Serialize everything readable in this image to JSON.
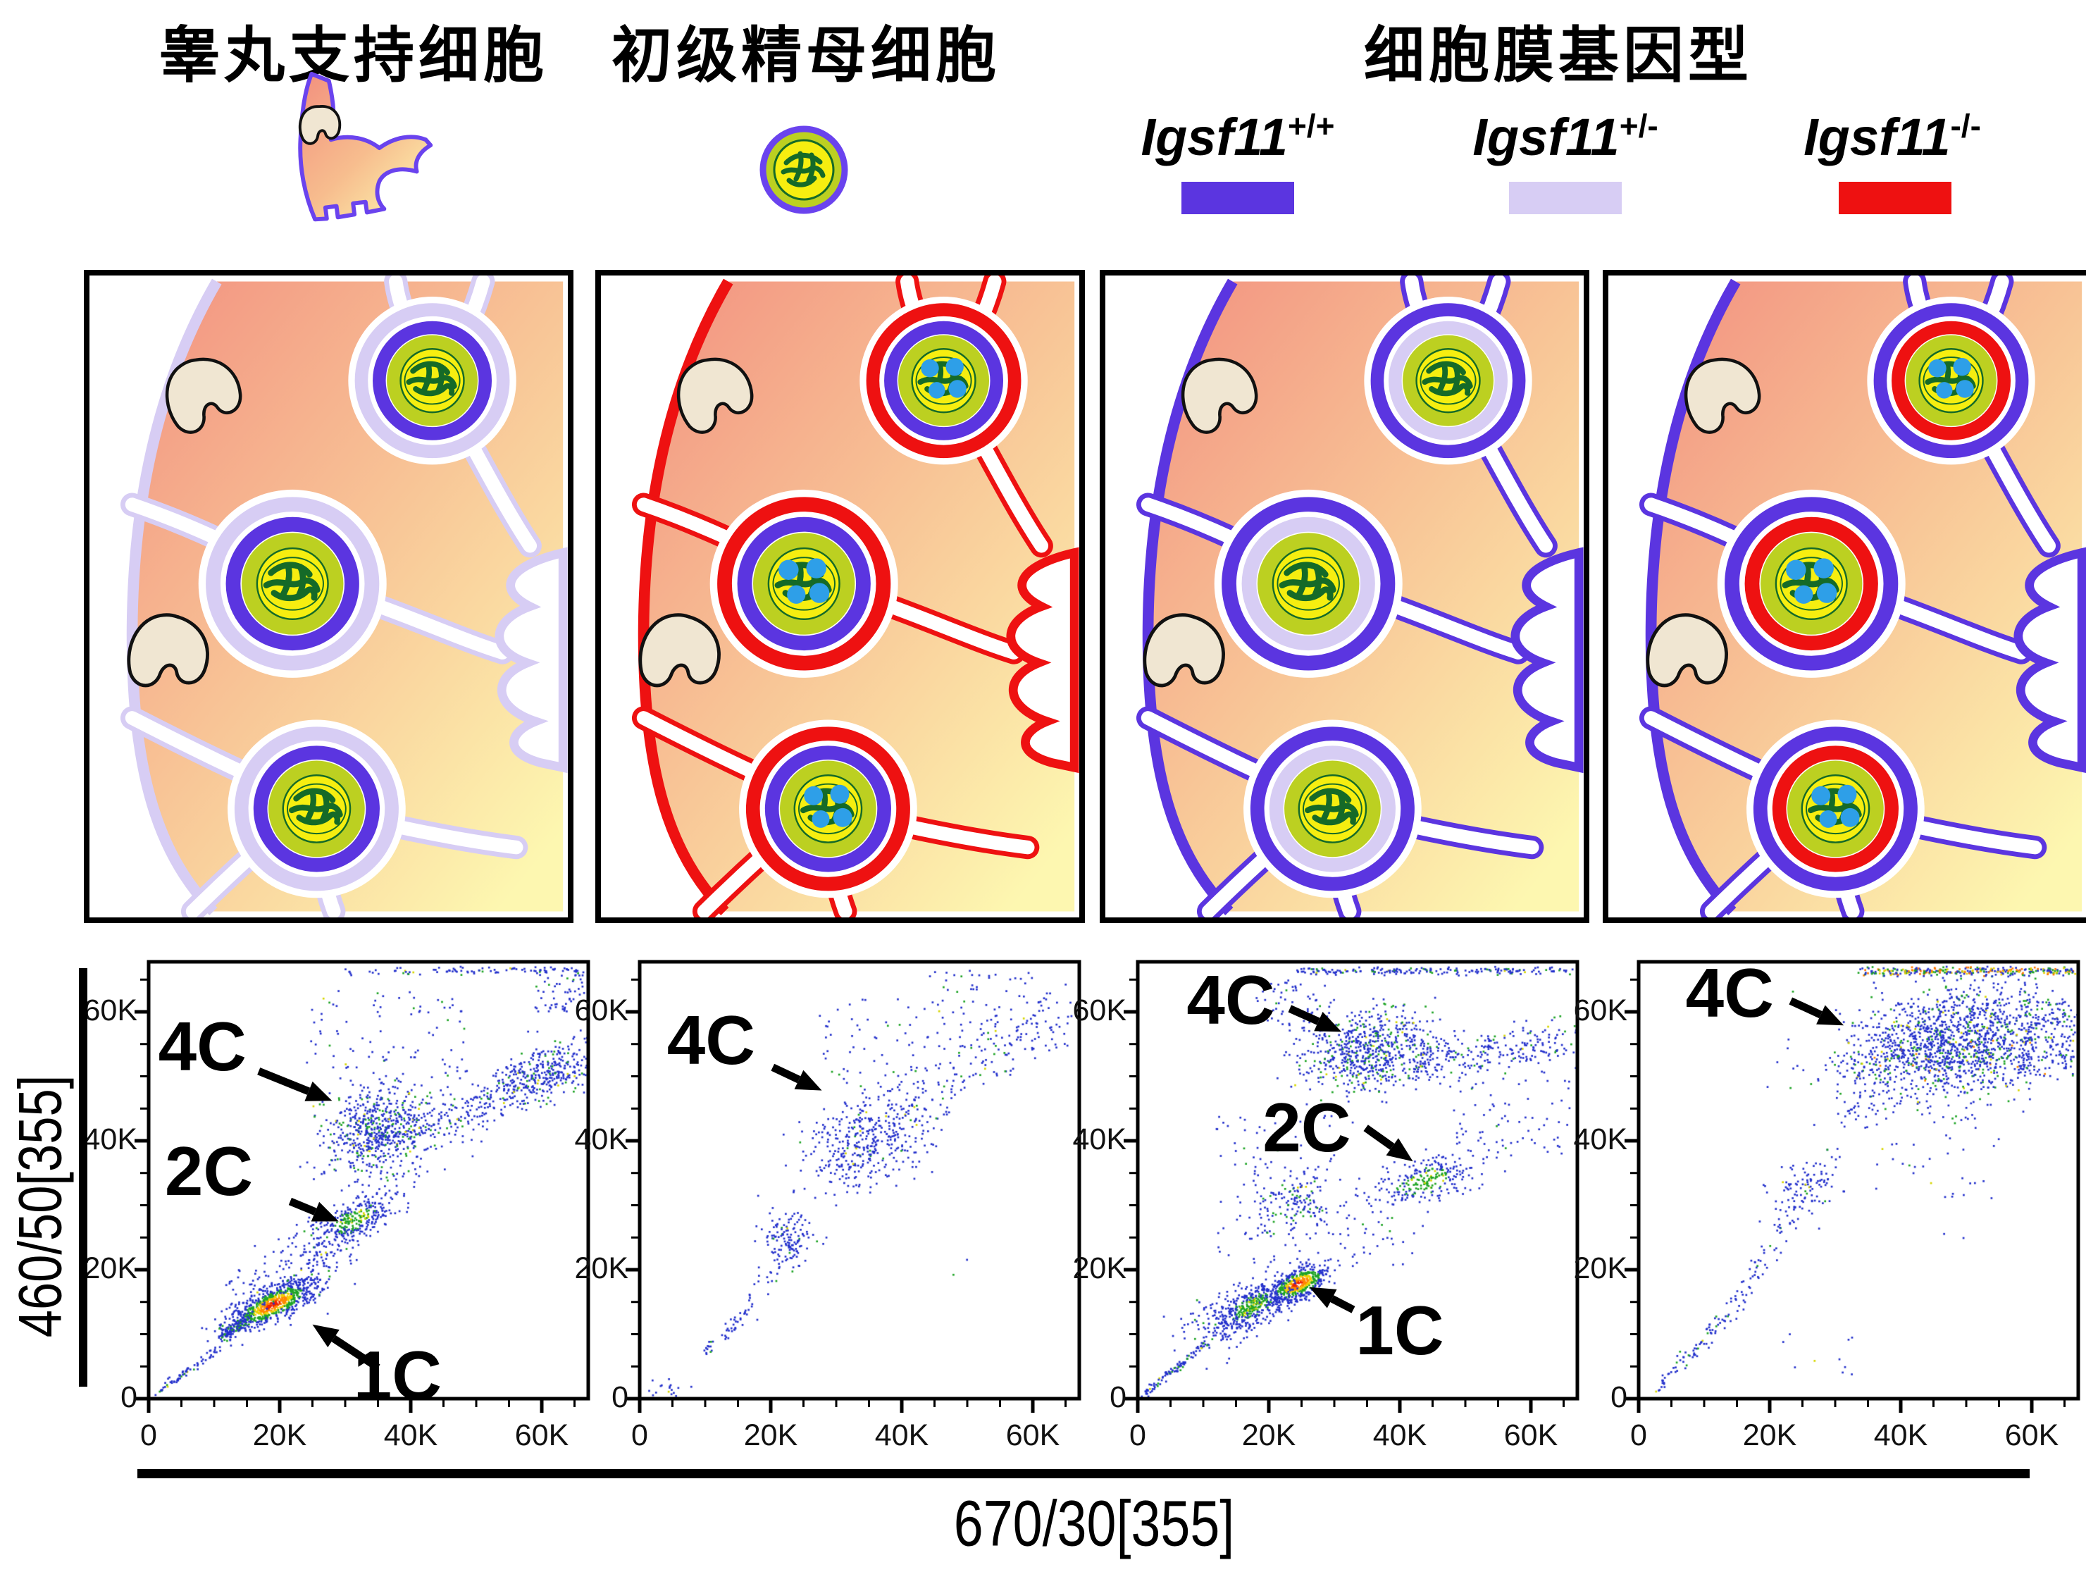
{
  "legend": {
    "sertoli_label": "睾丸支持细胞",
    "spermatocyte_label": "初级精母细胞",
    "genotype_title": "细胞膜基因型",
    "genotypes": [
      {
        "base": "Igsf11",
        "sup": "+/+",
        "color": "#5b35e0"
      },
      {
        "base": "Igsf11",
        "sup": "+/-",
        "color": "#d7cdf4"
      },
      {
        "base": "Igsf11",
        "sup": "-/-",
        "color": "#ee1111"
      }
    ]
  },
  "colors": {
    "purple": "#5b35e0",
    "lavender": "#d7cdf4",
    "red": "#ee1111",
    "cell_gradient_start": "#f29180",
    "cell_gradient_end": "#fdf7b0",
    "cytoplasm_ring": "#bcd021",
    "nucleus_yellow": "#f6ee10",
    "chromatin_green": "#156a28",
    "brdu_dot_blue": "#2e9fe8",
    "sertoli_nucleus_beige": "#f0e6d2"
  },
  "panels": [
    {
      "sertoli_membrane": "#d7cdf4",
      "spermatocyte_membrane": "#5b35e0",
      "brdu_dots": false
    },
    {
      "sertoli_membrane": "#ee1111",
      "spermatocyte_membrane": "#5b35e0",
      "brdu_dots": true
    },
    {
      "sertoli_membrane": "#5b35e0",
      "spermatocyte_membrane": "#d7cdf4",
      "brdu_dots": false
    },
    {
      "sertoli_membrane": "#5b35e0",
      "spermatocyte_membrane": "#ee1111",
      "brdu_dots": true
    }
  ],
  "axes": {
    "y_label": "460/50[355]",
    "x_label": "670/30[355]",
    "tick_labels": [
      "0",
      "20K",
      "40K",
      "60K"
    ],
    "tick_values_k": [
      0,
      20,
      40,
      60
    ],
    "minor_ticks_k": [
      5,
      10,
      15,
      25,
      30,
      35,
      45,
      50,
      55,
      65
    ],
    "xlim_k": [
      0,
      67
    ],
    "ylim_k": [
      0,
      67
    ]
  },
  "chart_data": [
    {
      "type": "scatter",
      "xlabel": "670/30[355]",
      "ylabel": "460/50[355]",
      "xlim": [
        0,
        67000
      ],
      "ylim": [
        0,
        67000
      ],
      "annotations": [
        {
          "text": "4C",
          "tx": 8.2,
          "ty": 54.6,
          "arrow": {
            "x1": 16.8,
            "y1": 50.8,
            "x2": 28.0,
            "y2": 46.2
          }
        },
        {
          "text": "2C",
          "tx": 9.2,
          "ty": 35.3,
          "arrow": {
            "x1": 21.6,
            "y1": 30.6,
            "x2": 29.0,
            "y2": 27.5
          }
        },
        {
          "text": "1C",
          "tx": 38.0,
          "ty": 3.6,
          "arrow": {
            "x1": 35.0,
            "y1": 4.8,
            "x2": 25.0,
            "y2": 11.5
          }
        }
      ],
      "clusters": [
        {
          "kind": "line",
          "x1": 1,
          "y1": 0.6,
          "x2": 11,
          "y2": 8,
          "jitter": 0.7,
          "n": 70,
          "palette": "cold"
        },
        {
          "kind": "gauss",
          "cx": 19,
          "cy": 14.6,
          "sx": 3.6,
          "sy": 1.2,
          "rot": 27,
          "n": 750,
          "palette": "hot"
        },
        {
          "kind": "line",
          "x1": 11,
          "y1": 9.5,
          "x2": 15,
          "y2": 12.5,
          "jitter": 1.0,
          "n": 130,
          "palette": "greenish"
        },
        {
          "kind": "gauss",
          "cx": 23,
          "cy": 20,
          "sx": 4,
          "sy": 3,
          "rot": 30,
          "n": 80,
          "palette": "cold"
        },
        {
          "kind": "gauss",
          "cx": 31.5,
          "cy": 27.8,
          "sx": 3.4,
          "sy": 1.5,
          "rot": 28,
          "n": 280,
          "palette": "greencore"
        },
        {
          "kind": "gauss",
          "cx": 27,
          "cy": 23.5,
          "sx": 2.5,
          "sy": 2,
          "rot": 30,
          "n": 90,
          "palette": "cold"
        },
        {
          "kind": "gauss",
          "cx": 35.5,
          "cy": 41.5,
          "sx": 4.6,
          "sy": 3.4,
          "rot": 20,
          "n": 700,
          "palette": "coldgreen"
        },
        {
          "kind": "band",
          "x1": 44,
          "y1": 42,
          "x2": 66,
          "y2": 53,
          "w": 3.2,
          "n": 260,
          "palette": "cold"
        },
        {
          "kind": "gauss",
          "cx": 60,
          "cy": 50,
          "sx": 4,
          "sy": 2.4,
          "rot": 25,
          "n": 220,
          "palette": "coldgreen"
        },
        {
          "kind": "uniform",
          "x1": 24,
          "y1": 47,
          "x2": 50,
          "y2": 64,
          "n": 90,
          "palette": "cold"
        },
        {
          "kind": "band",
          "x1": 30,
          "y1": 66.3,
          "x2": 66,
          "y2": 66.5,
          "w": 0.6,
          "n": 90,
          "palette": "coldgreen"
        },
        {
          "kind": "uniform",
          "x1": 59,
          "y1": 60,
          "x2": 66.5,
          "y2": 66.5,
          "n": 60,
          "palette": "cold"
        },
        {
          "kind": "uniform",
          "x1": 12,
          "y1": 13,
          "x2": 22,
          "y2": 20,
          "n": 60,
          "palette": "cold"
        }
      ]
    },
    {
      "type": "scatter",
      "xlabel": "670/30[355]",
      "ylabel": "460/50[355]",
      "xlim": [
        0,
        67000
      ],
      "ylim": [
        0,
        67000
      ],
      "annotations": [
        {
          "text": "4C",
          "tx": 10.9,
          "ty": 55.6,
          "arrow": {
            "x1": 20.3,
            "y1": 51.4,
            "x2": 27.8,
            "y2": 47.8
          }
        }
      ],
      "clusters": [
        {
          "kind": "gauss",
          "cx": 4,
          "cy": 1.5,
          "sx": 1.6,
          "sy": 0.9,
          "rot": 20,
          "n": 18,
          "palette": "cold"
        },
        {
          "kind": "line",
          "x1": 10,
          "y1": 7,
          "x2": 17,
          "y2": 14,
          "jitter": 1.1,
          "n": 45,
          "palette": "cold"
        },
        {
          "kind": "gauss",
          "cx": 22.5,
          "cy": 24.5,
          "sx": 2.3,
          "sy": 2.1,
          "rot": 25,
          "n": 110,
          "palette": "cold"
        },
        {
          "kind": "line",
          "x1": 17,
          "y1": 15,
          "x2": 26,
          "y2": 28,
          "jitter": 1.6,
          "n": 45,
          "palette": "cold"
        },
        {
          "kind": "gauss",
          "cx": 35,
          "cy": 40,
          "sx": 5,
          "sy": 3.6,
          "rot": 22,
          "n": 420,
          "palette": "cold2"
        },
        {
          "kind": "band",
          "x1": 40,
          "y1": 45,
          "x2": 64,
          "y2": 60,
          "w": 4,
          "n": 150,
          "palette": "cold"
        },
        {
          "kind": "uniform",
          "x1": 44,
          "y1": 54,
          "x2": 66,
          "y2": 66.5,
          "n": 90,
          "palette": "cold"
        },
        {
          "kind": "uniform",
          "x1": 27,
          "y1": 48,
          "x2": 44,
          "y2": 62,
          "n": 50,
          "palette": "cold"
        },
        {
          "kind": "uniform",
          "x1": 45,
          "y1": 18,
          "x2": 52,
          "y2": 22,
          "n": 2,
          "palette": "cold"
        }
      ]
    },
    {
      "type": "scatter",
      "xlabel": "670/30[355]",
      "ylabel": "460/50[355]",
      "xlim": [
        0,
        67000
      ],
      "ylim": [
        0,
        67000
      ],
      "annotations": [
        {
          "text": "4C",
          "tx": 14.2,
          "ty": 61.9,
          "arrow": {
            "x1": 23.2,
            "y1": 60.5,
            "x2": 31.1,
            "y2": 56.9
          }
        },
        {
          "text": "2C",
          "tx": 25.8,
          "ty": 42.1,
          "arrow": {
            "x1": 34.8,
            "y1": 42.0,
            "x2": 42.0,
            "y2": 36.8
          }
        },
        {
          "text": "1C",
          "tx": 40.0,
          "ty": 10.6,
          "arrow": {
            "x1": 32.9,
            "y1": 13.8,
            "x2": 26.2,
            "y2": 17.3
          }
        }
      ],
      "clusters": [
        {
          "kind": "line",
          "x1": 1,
          "y1": 0.7,
          "x2": 11,
          "y2": 9,
          "jitter": 0.6,
          "n": 100,
          "palette": "coldgreen"
        },
        {
          "kind": "gauss",
          "cx": 24.5,
          "cy": 17.8,
          "sx": 2.6,
          "sy": 1.1,
          "rot": 26,
          "n": 520,
          "palette": "hot"
        },
        {
          "kind": "gauss",
          "cx": 17.5,
          "cy": 14.3,
          "sx": 3.2,
          "sy": 1.4,
          "rot": 26,
          "n": 420,
          "palette": "greencore"
        },
        {
          "kind": "gauss",
          "cx": 12,
          "cy": 11,
          "sx": 3,
          "sy": 2.4,
          "rot": 30,
          "n": 90,
          "palette": "cold"
        },
        {
          "kind": "gauss",
          "cx": 23.5,
          "cy": 30,
          "sx": 3,
          "sy": 2.3,
          "rot": 20,
          "n": 140,
          "palette": "coldgreen"
        },
        {
          "kind": "gauss",
          "cx": 44,
          "cy": 33.8,
          "sx": 4.2,
          "sy": 1.8,
          "rot": 14,
          "n": 260,
          "palette": "greencore"
        },
        {
          "kind": "uniform",
          "x1": 12,
          "y1": 20,
          "x2": 30,
          "y2": 44,
          "n": 110,
          "palette": "cold"
        },
        {
          "kind": "gauss",
          "cx": 35,
          "cy": 54,
          "sx": 5,
          "sy": 3,
          "rot": 8,
          "n": 650,
          "palette": "coldgreen"
        },
        {
          "kind": "band",
          "x1": 42,
          "y1": 52,
          "x2": 66,
          "y2": 56,
          "w": 3.5,
          "n": 260,
          "palette": "cold"
        },
        {
          "kind": "band",
          "x1": 24,
          "y1": 66.3,
          "x2": 66,
          "y2": 66.4,
          "w": 0.6,
          "n": 200,
          "palette": "coldgreen"
        },
        {
          "kind": "uniform",
          "x1": 18,
          "y1": 57,
          "x2": 30,
          "y2": 65,
          "n": 60,
          "palette": "cold"
        },
        {
          "kind": "uniform",
          "x1": 48,
          "y1": 38,
          "x2": 66,
          "y2": 50,
          "n": 70,
          "palette": "cold"
        },
        {
          "kind": "uniform",
          "x1": 30,
          "y1": 20,
          "x2": 44,
          "y2": 30,
          "n": 40,
          "palette": "cold"
        }
      ]
    },
    {
      "type": "scatter",
      "xlabel": "670/30[355]",
      "ylabel": "460/50[355]",
      "xlim": [
        0,
        67000
      ],
      "ylim": [
        0,
        67000
      ],
      "annotations": [
        {
          "text": "4C",
          "tx": 13.9,
          "ty": 63.0,
          "arrow": {
            "x1": 23.2,
            "y1": 61.7,
            "x2": 31.3,
            "y2": 57.9
          }
        }
      ],
      "clusters": [
        {
          "kind": "line",
          "x1": 3,
          "y1": 2,
          "x2": 13,
          "y2": 12,
          "jitter": 1.2,
          "n": 70,
          "palette": "coldgreen"
        },
        {
          "kind": "line",
          "x1": 13,
          "y1": 12,
          "x2": 22,
          "y2": 26,
          "jitter": 1.6,
          "n": 55,
          "palette": "cold"
        },
        {
          "kind": "line",
          "x1": 22,
          "y1": 26,
          "x2": 30,
          "y2": 40,
          "jitter": 2.0,
          "n": 45,
          "palette": "cold"
        },
        {
          "kind": "gauss",
          "cx": 25,
          "cy": 33,
          "sx": 2.6,
          "sy": 2.2,
          "rot": 30,
          "n": 80,
          "palette": "cold"
        },
        {
          "kind": "gauss",
          "cx": 48,
          "cy": 55,
          "sx": 8,
          "sy": 4,
          "rot": 8,
          "n": 1500,
          "palette": "coldgreen2"
        },
        {
          "kind": "uniform",
          "x1": 58,
          "y1": 50,
          "x2": 66.5,
          "y2": 62,
          "n": 160,
          "palette": "coldgreen2"
        },
        {
          "kind": "band",
          "x1": 34,
          "y1": 66.2,
          "x2": 66.5,
          "y2": 66.4,
          "w": 0.7,
          "n": 320,
          "palette": "tophot"
        },
        {
          "kind": "uniform",
          "x1": 30,
          "y1": 42,
          "x2": 38,
          "y2": 54,
          "n": 60,
          "palette": "cold"
        },
        {
          "kind": "uniform",
          "x1": 36,
          "y1": 30,
          "x2": 55,
          "y2": 45,
          "n": 35,
          "palette": "cold"
        },
        {
          "kind": "uniform",
          "x1": 20,
          "y1": 3,
          "x2": 33,
          "y2": 10,
          "n": 10,
          "palette": "cold"
        },
        {
          "kind": "uniform",
          "x1": 46,
          "y1": 22,
          "x2": 52,
          "y2": 26,
          "n": 2,
          "palette": "cold"
        }
      ]
    }
  ]
}
